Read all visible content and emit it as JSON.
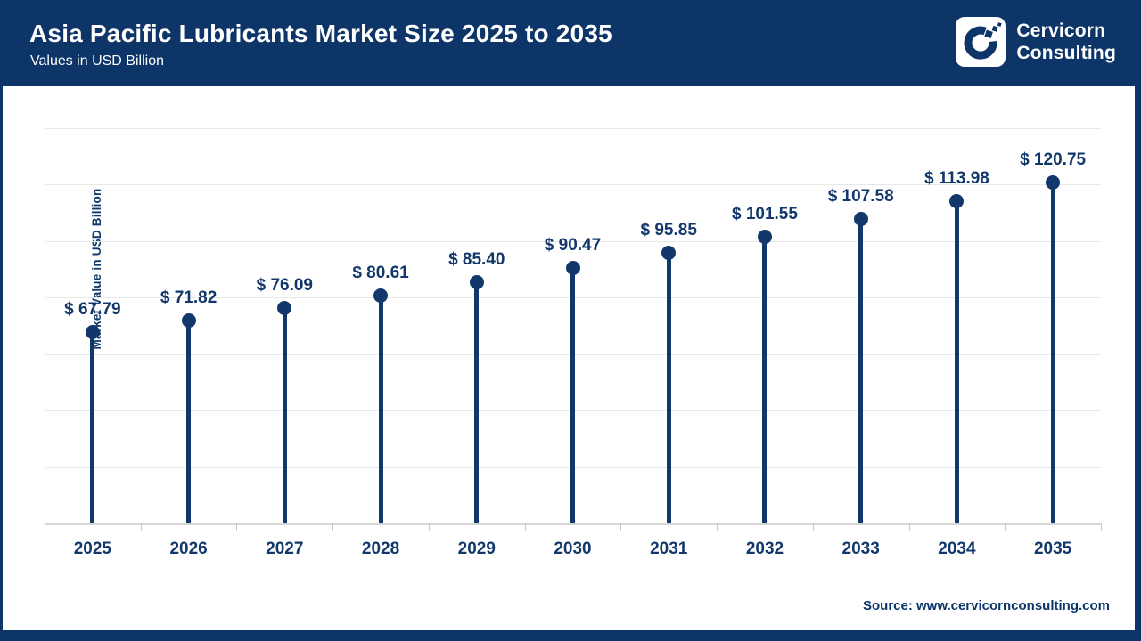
{
  "header": {
    "title": "Asia Pacific Lubricants Market Size 2025 to 2035",
    "subtitle": "Values in USD Billion",
    "brand": {
      "line1": "Cervicorn",
      "line2": "Consulting"
    }
  },
  "chart_data": {
    "type": "lollipop",
    "title": "Asia Pacific Lubricants Market Size 2025 to 2035",
    "categories": [
      "2025",
      "2026",
      "2027",
      "2028",
      "2029",
      "2030",
      "2031",
      "2032",
      "2033",
      "2034",
      "2035"
    ],
    "values": [
      67.79,
      71.82,
      76.09,
      80.61,
      85.4,
      90.47,
      95.85,
      101.55,
      107.58,
      113.98,
      120.75
    ],
    "labels": [
      "$ 67.79",
      "$ 71.82",
      "$ 76.09",
      "$ 80.61",
      "$ 85.40",
      "$ 90.47",
      "$ 95.85",
      "$ 101.55",
      "$ 107.58",
      "$ 113.98",
      "$ 120.75"
    ],
    "xlabel": "",
    "ylabel": "Market Value in USD Billion",
    "ylim": [
      0,
      140
    ],
    "gridline_step": 20,
    "grid": true,
    "legend": false,
    "y_tick_labels_visible": false
  },
  "footer": {
    "source": "Source: www.cervicornconsulting.com"
  },
  "colors": {
    "navy": "#0d3568",
    "series": "#12386b",
    "gridline": "#e8e8e8",
    "axis": "#d6d6d6",
    "background": "#ffffff"
  }
}
